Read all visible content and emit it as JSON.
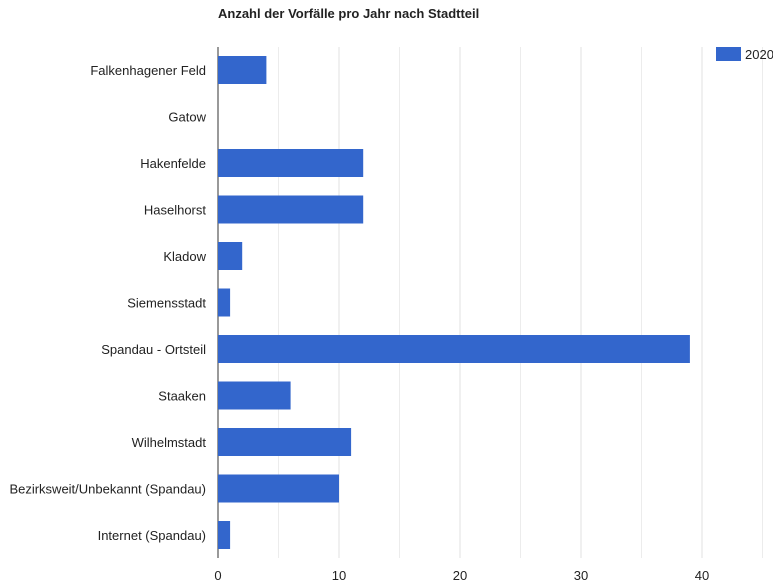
{
  "chart_data": {
    "type": "bar",
    "orientation": "horizontal",
    "title": "Anzahl der Vorfälle pro Jahr nach Stadtteil",
    "categories": [
      "Falkenhagener Feld",
      "Gatow",
      "Hakenfelde",
      "Haselhorst",
      "Kladow",
      "Siemensstadt",
      "Spandau - Ortsteil",
      "Staaken",
      "Wilhelmstadt",
      "Bezirksweit/Unbekannt (Spandau)",
      "Internet (Spandau)"
    ],
    "series": [
      {
        "name": "2020",
        "color": "#3366cc",
        "values": [
          4,
          0,
          12,
          12,
          2,
          1,
          39,
          6,
          11,
          10,
          1
        ]
      }
    ],
    "xlim": [
      0,
      45
    ],
    "x_ticks": [
      "0",
      "10",
      "20",
      "30",
      "40"
    ],
    "grid": true,
    "legend_position": "top-right"
  }
}
